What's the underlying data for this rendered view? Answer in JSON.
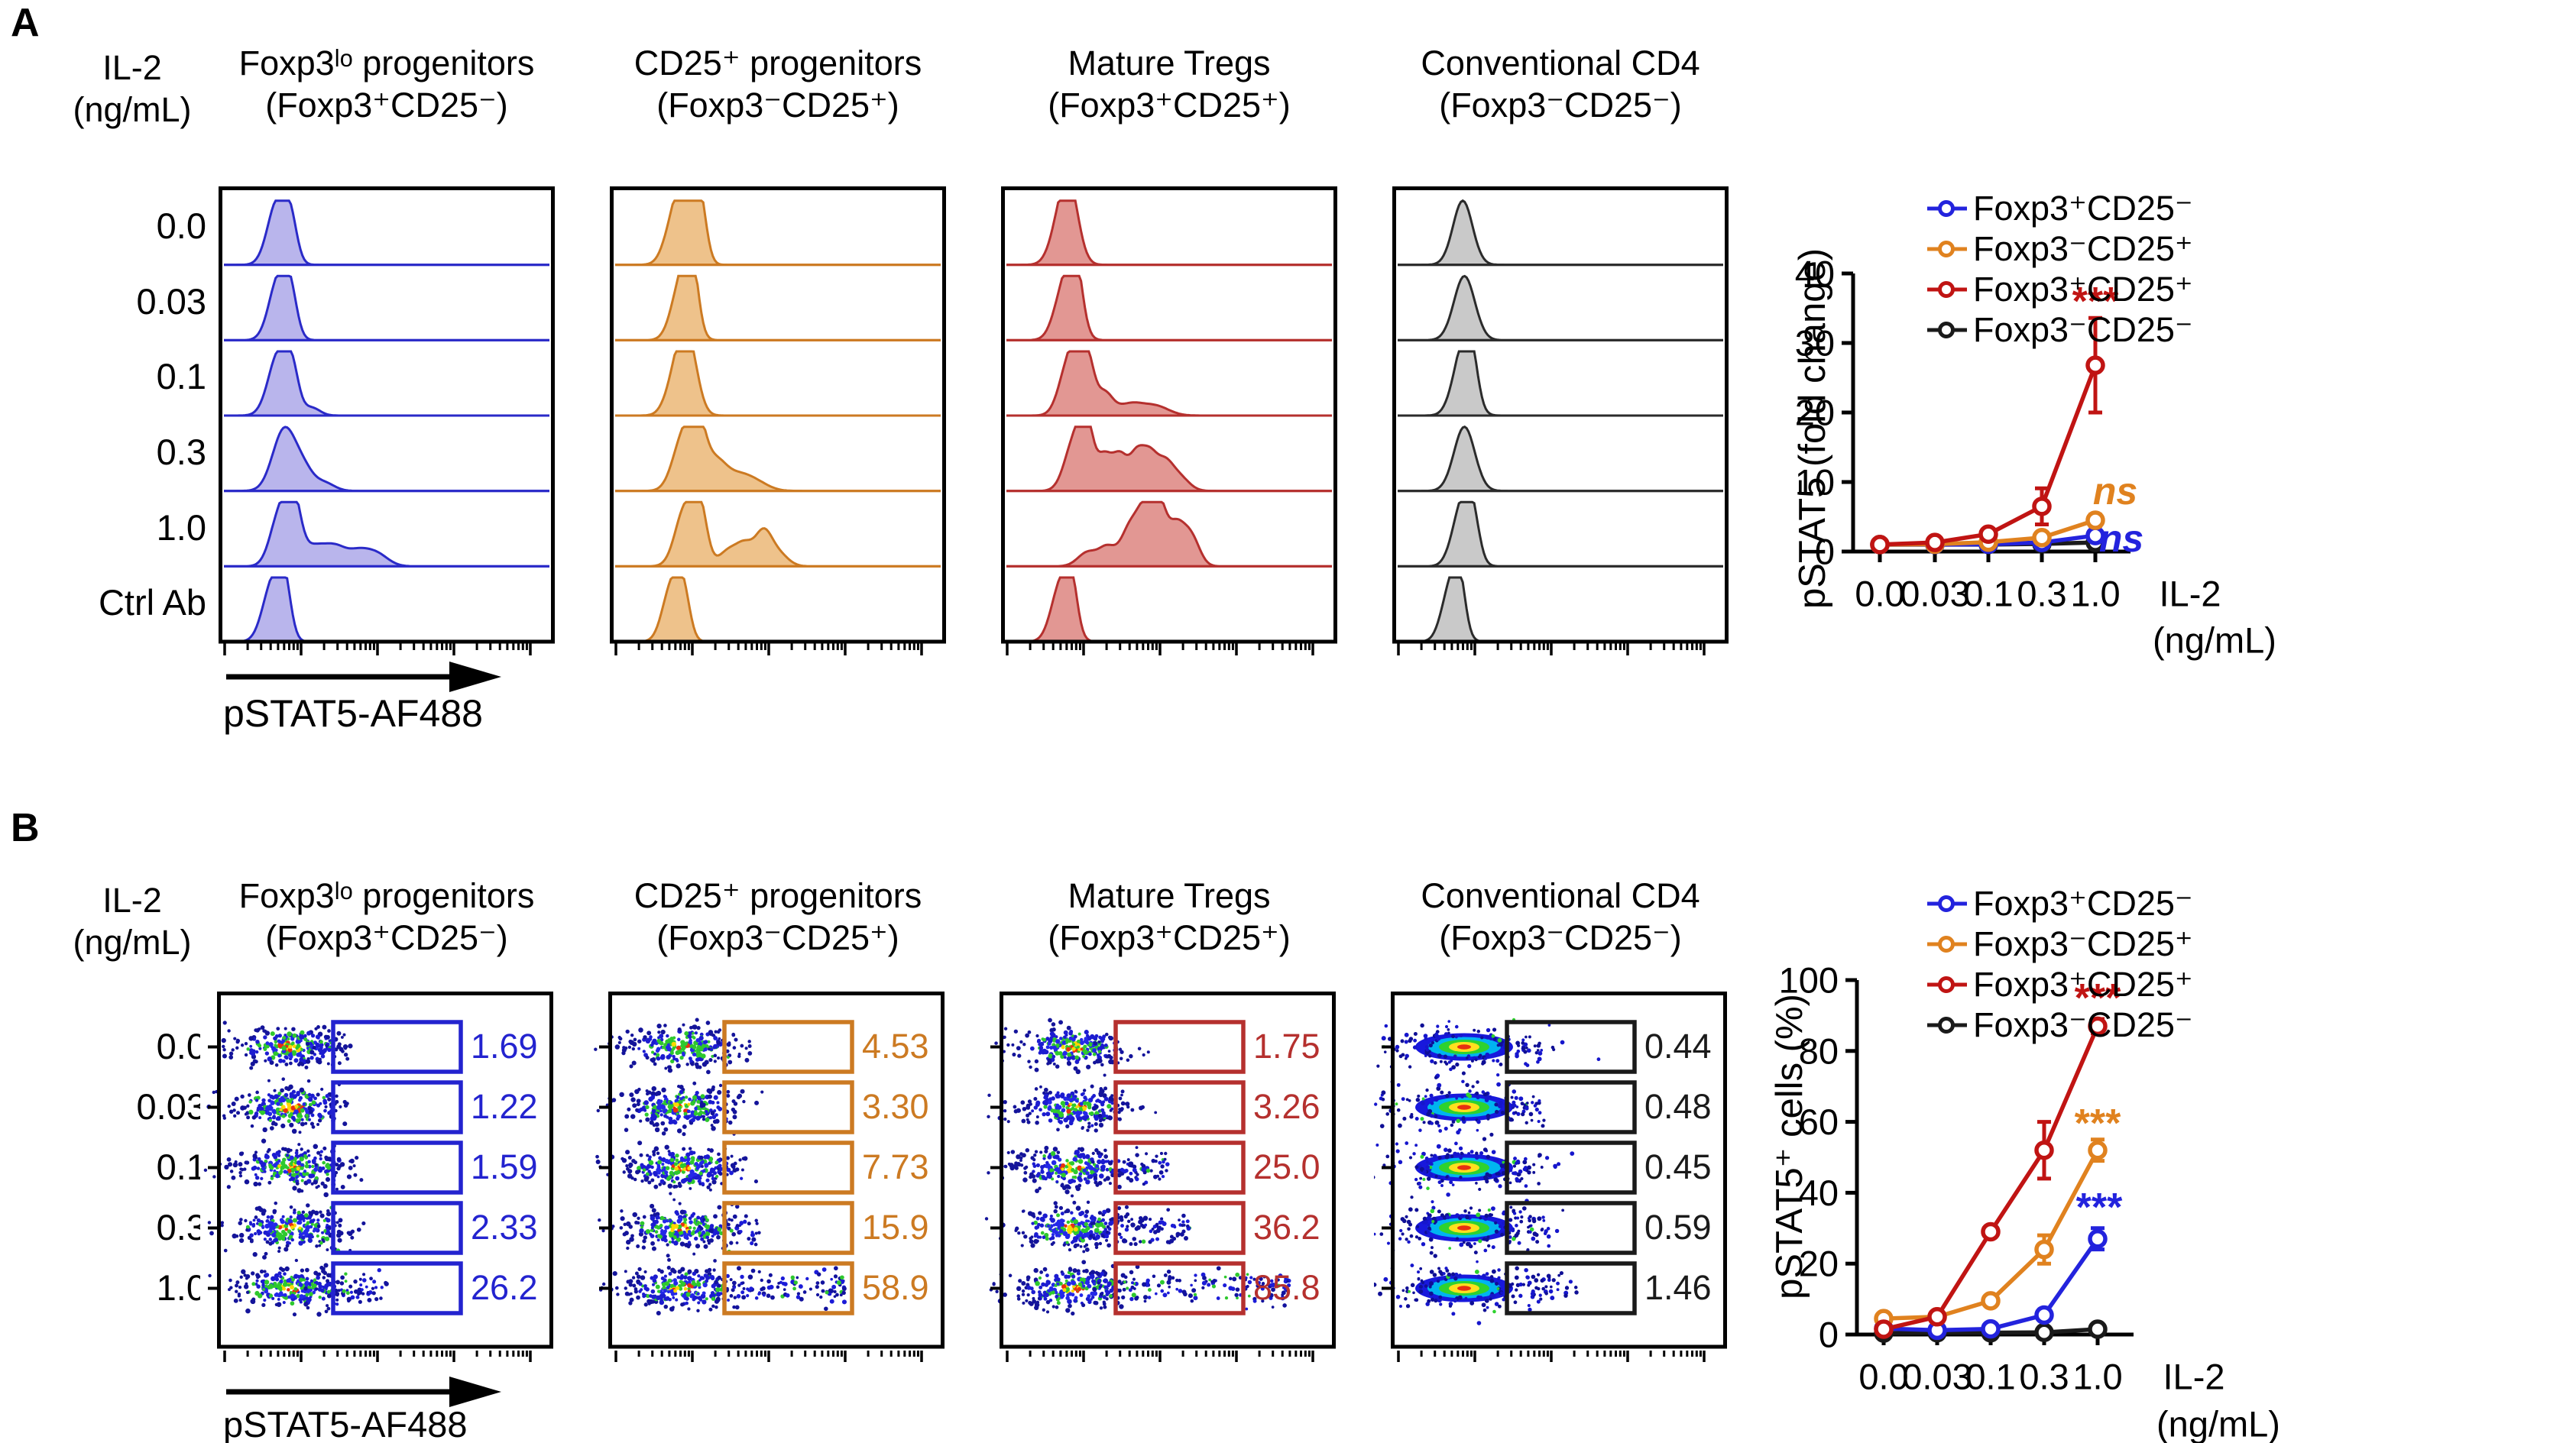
{
  "figure": {
    "panel_a": {
      "label": "A",
      "il2_line1": "IL-2",
      "il2_line2": "(ng/mL)",
      "x_axis_label": "pSTAT5-AF488",
      "row_labels": [
        "0.0",
        "0.03",
        "0.1",
        "0.3",
        "1.0",
        "Ctrl Ab"
      ],
      "columns": [
        {
          "title_line1": "Foxp3ˡᵒ progenitors",
          "title_line2": "(Foxp3⁺CD25⁻)",
          "stroke": "#2a2ac8",
          "fill": "#b9b5ec"
        },
        {
          "title_line1": "CD25⁺ progenitors",
          "title_line2": "(Foxp3⁻CD25⁺)",
          "stroke": "#cc7a22",
          "fill": "#eec28b"
        },
        {
          "title_line1": "Mature Tregs",
          "title_line2": "(Foxp3⁺CD25⁺)",
          "stroke": "#b5302e",
          "fill": "#e29793"
        },
        {
          "title_line1": "Conventional CD4",
          "title_line2": "(Foxp3⁻CD25⁻)",
          "stroke": "#2b2b2b",
          "fill": "#c9c9c9"
        }
      ],
      "histograms": [
        [
          [
            [
              0.165,
              0.03,
              1.0
            ],
            [
              0.205,
              0.02,
              0.55
            ]
          ],
          [
            [
              0.17,
              0.03,
              1.0
            ],
            [
              0.205,
              0.02,
              0.5
            ]
          ],
          [
            [
              0.17,
              0.032,
              1.0
            ],
            [
              0.21,
              0.02,
              0.5
            ],
            [
              0.27,
              0.025,
              0.12
            ]
          ],
          [
            [
              0.185,
              0.035,
              0.95
            ],
            [
              0.245,
              0.03,
              0.3
            ],
            [
              0.31,
              0.03,
              0.12
            ]
          ],
          [
            [
              0.175,
              0.03,
              0.88
            ],
            [
              0.215,
              0.022,
              0.8
            ],
            [
              0.28,
              0.04,
              0.32
            ],
            [
              0.345,
              0.03,
              0.22
            ],
            [
              0.41,
              0.035,
              0.22
            ],
            [
              0.47,
              0.035,
              0.18
            ]
          ],
          [
            [
              0.15,
              0.03,
              0.92
            ],
            [
              0.185,
              0.02,
              0.75
            ]
          ]
        ],
        [
          [
            [
              0.185,
              0.03,
              0.75
            ],
            [
              0.225,
              0.028,
              1.0
            ],
            [
              0.26,
              0.02,
              0.8
            ]
          ],
          [
            [
              0.205,
              0.03,
              0.95
            ],
            [
              0.235,
              0.02,
              0.9
            ]
          ],
          [
            [
              0.19,
              0.03,
              0.65
            ],
            [
              0.225,
              0.028,
              1.0
            ]
          ],
          [
            [
              0.21,
              0.032,
              0.85
            ],
            [
              0.255,
              0.025,
              0.9
            ],
            [
              0.31,
              0.03,
              0.4
            ],
            [
              0.37,
              0.04,
              0.22
            ],
            [
              0.43,
              0.04,
              0.13
            ]
          ],
          [
            [
              0.215,
              0.03,
              0.9
            ],
            [
              0.26,
              0.022,
              0.85
            ],
            [
              0.35,
              0.03,
              0.25
            ],
            [
              0.4,
              0.025,
              0.3
            ],
            [
              0.455,
              0.025,
              0.5
            ],
            [
              0.5,
              0.03,
              0.2
            ]
          ],
          [
            [
              0.175,
              0.028,
              0.9
            ],
            [
              0.21,
              0.02,
              0.6
            ]
          ]
        ],
        [
          [
            [
              0.165,
              0.03,
              0.55
            ],
            [
              0.195,
              0.028,
              1.0
            ]
          ],
          [
            [
              0.185,
              0.032,
              1.0
            ],
            [
              0.215,
              0.02,
              0.7
            ]
          ],
          [
            [
              0.195,
              0.03,
              0.9
            ],
            [
              0.225,
              0.018,
              0.8
            ],
            [
              0.255,
              0.018,
              0.6
            ],
            [
              0.3,
              0.025,
              0.35
            ],
            [
              0.38,
              0.04,
              0.18
            ],
            [
              0.46,
              0.04,
              0.14
            ]
          ],
          [
            [
              0.21,
              0.03,
              0.8
            ],
            [
              0.245,
              0.02,
              0.85
            ],
            [
              0.3,
              0.025,
              0.55
            ],
            [
              0.35,
              0.022,
              0.5
            ],
            [
              0.4,
              0.022,
              0.55
            ],
            [
              0.44,
              0.022,
              0.5
            ],
            [
              0.485,
              0.025,
              0.4
            ],
            [
              0.53,
              0.03,
              0.22
            ]
          ],
          [
            [
              0.25,
              0.03,
              0.22
            ],
            [
              0.31,
              0.025,
              0.28
            ],
            [
              0.38,
              0.028,
              0.6
            ],
            [
              0.43,
              0.025,
              0.85
            ],
            [
              0.47,
              0.02,
              0.75
            ],
            [
              0.52,
              0.028,
              0.65
            ],
            [
              0.57,
              0.025,
              0.4
            ]
          ],
          [
            [
              0.17,
              0.03,
              0.95
            ],
            [
              0.2,
              0.018,
              0.6
            ]
          ]
        ],
        [
          [
            [
              0.2,
              0.03,
              1.0
            ]
          ],
          [
            [
              0.205,
              0.032,
              1.0
            ]
          ],
          [
            [
              0.2,
              0.03,
              1.0
            ],
            [
              0.225,
              0.02,
              0.6
            ]
          ],
          [
            [
              0.205,
              0.032,
              1.0
            ]
          ],
          [
            [
              0.2,
              0.03,
              1.0
            ],
            [
              0.23,
              0.02,
              0.5
            ]
          ],
          [
            [
              0.165,
              0.028,
              0.9
            ],
            [
              0.19,
              0.018,
              0.6
            ]
          ]
        ]
      ]
    },
    "panel_b": {
      "label": "B",
      "il2_line1": "IL-2",
      "il2_line2": "(ng/mL)",
      "x_axis_label": "pSTAT5-AF488",
      "row_labels": [
        "0.0",
        "0.03",
        "0.1",
        "0.3",
        "1.0"
      ],
      "columns": [
        {
          "title_line1": "Foxp3ˡᵒ progenitors",
          "title_line2": "(Foxp3⁺CD25⁻)",
          "stroke": "#2323cf",
          "values": [
            "1.69",
            "1.22",
            "1.59",
            "2.33",
            "26.2"
          ],
          "dense": false
        },
        {
          "title_line1": "CD25⁺ progenitors",
          "title_line2": "(Foxp3⁻CD25⁺)",
          "stroke": "#cc7a22",
          "values": [
            "4.53",
            "3.30",
            "7.73",
            "15.9",
            "58.9"
          ],
          "dense": false
        },
        {
          "title_line1": "Mature Tregs",
          "title_line2": "(Foxp3⁺CD25⁺)",
          "stroke": "#b5302e",
          "values": [
            "1.75",
            "3.26",
            "25.0",
            "36.2",
            "85.8"
          ],
          "dense": false
        },
        {
          "title_line1": "Conventional CD4",
          "title_line2": "(Foxp3⁻CD25⁻)",
          "stroke": "#1a1a1a",
          "values": [
            "0.44",
            "0.48",
            "0.45",
            "0.59",
            "1.46"
          ],
          "dense": true
        }
      ]
    }
  },
  "chart_data": [
    {
      "type": "line",
      "title": "",
      "x_categories": [
        "0.0",
        "0.03",
        "0.1",
        "0.3",
        "1.0"
      ],
      "xlabel_line1": "IL-2",
      "xlabel_line2": "(ng/mL)",
      "ylabel": "pSTAT5 (fold change)",
      "ylim": [
        0,
        40
      ],
      "yticks": [
        0,
        10,
        20,
        30,
        40
      ],
      "grid": false,
      "legend_position": "top-left",
      "series": [
        {
          "name": "Foxp3⁺CD25⁻",
          "color": "#2323dd",
          "values": [
            1.0,
            1.0,
            1.05,
            1.3,
            2.3
          ],
          "errors": [
            0,
            0,
            0,
            0,
            0
          ]
        },
        {
          "name": "Foxp3⁻CD25⁺",
          "color": "#e0821f",
          "values": [
            1.0,
            1.05,
            1.35,
            2.0,
            4.5
          ],
          "errors": [
            0,
            0,
            0,
            0,
            0.8
          ]
        },
        {
          "name": "Foxp3⁺CD25⁺",
          "color": "#c01413",
          "values": [
            1.0,
            1.3,
            2.5,
            6.5,
            26.8
          ],
          "errors": [
            0,
            0,
            0.5,
            2.6,
            6.8
          ]
        },
        {
          "name": "Foxp3⁻CD25⁻",
          "color": "#1a1a1a",
          "values": [
            1.0,
            1.0,
            1.0,
            1.1,
            1.3
          ],
          "errors": [
            0,
            0,
            0,
            0,
            0
          ]
        }
      ],
      "annotations": [
        {
          "text": "***",
          "color": "#c01413",
          "x": 412,
          "y": 182,
          "size": 52,
          "bold": true,
          "italic": false
        },
        {
          "text": "ns",
          "color": "#e0821f",
          "x": 438,
          "y": 430,
          "size": 50,
          "bold": true,
          "italic": true
        },
        {
          "text": "ns",
          "color": "#2323dd",
          "x": 446,
          "y": 492,
          "size": 50,
          "bold": true,
          "italic": true
        }
      ]
    },
    {
      "type": "line",
      "title": "",
      "x_categories": [
        "0.0",
        "0.03",
        "0.1",
        "0.3",
        "1.0"
      ],
      "xlabel_line1": "IL-2",
      "xlabel_line2": "(ng/mL)",
      "ylabel": "pSTAT5⁺ cells (%)",
      "ylim": [
        0,
        100
      ],
      "yticks": [
        0,
        20,
        40,
        60,
        80,
        100
      ],
      "grid": false,
      "legend_position": "top-left",
      "series": [
        {
          "name": "Foxp3⁺CD25⁻",
          "color": "#2323dd",
          "values": [
            1.7,
            1.2,
            1.6,
            5.5,
            27
          ],
          "errors": [
            0,
            0,
            0,
            0,
            3
          ]
        },
        {
          "name": "Foxp3⁻CD25⁺",
          "color": "#e0821f",
          "values": [
            4.5,
            5.0,
            9.5,
            24,
            52
          ],
          "errors": [
            0,
            0,
            0,
            4,
            3
          ]
        },
        {
          "name": "Foxp3⁺CD25⁺",
          "color": "#c01413",
          "values": [
            1.5,
            5.0,
            29,
            52,
            87
          ],
          "errors": [
            0,
            0,
            0,
            8,
            2
          ]
        },
        {
          "name": "Foxp3⁻CD25⁻",
          "color": "#1a1a1a",
          "values": [
            0.4,
            0.5,
            0.5,
            0.6,
            1.5
          ],
          "errors": [
            0,
            0,
            0,
            0,
            0
          ]
        }
      ],
      "annotations": [
        {
          "text": "***",
          "color": "#c01413",
          "x": 415,
          "y": 224,
          "size": 52,
          "bold": true,
          "italic": false
        },
        {
          "text": "***",
          "color": "#e0821f",
          "x": 415,
          "y": 388,
          "size": 52,
          "bold": true,
          "italic": false
        },
        {
          "text": "***",
          "color": "#2323dd",
          "x": 417,
          "y": 498,
          "size": 52,
          "bold": true,
          "italic": false
        }
      ]
    }
  ]
}
